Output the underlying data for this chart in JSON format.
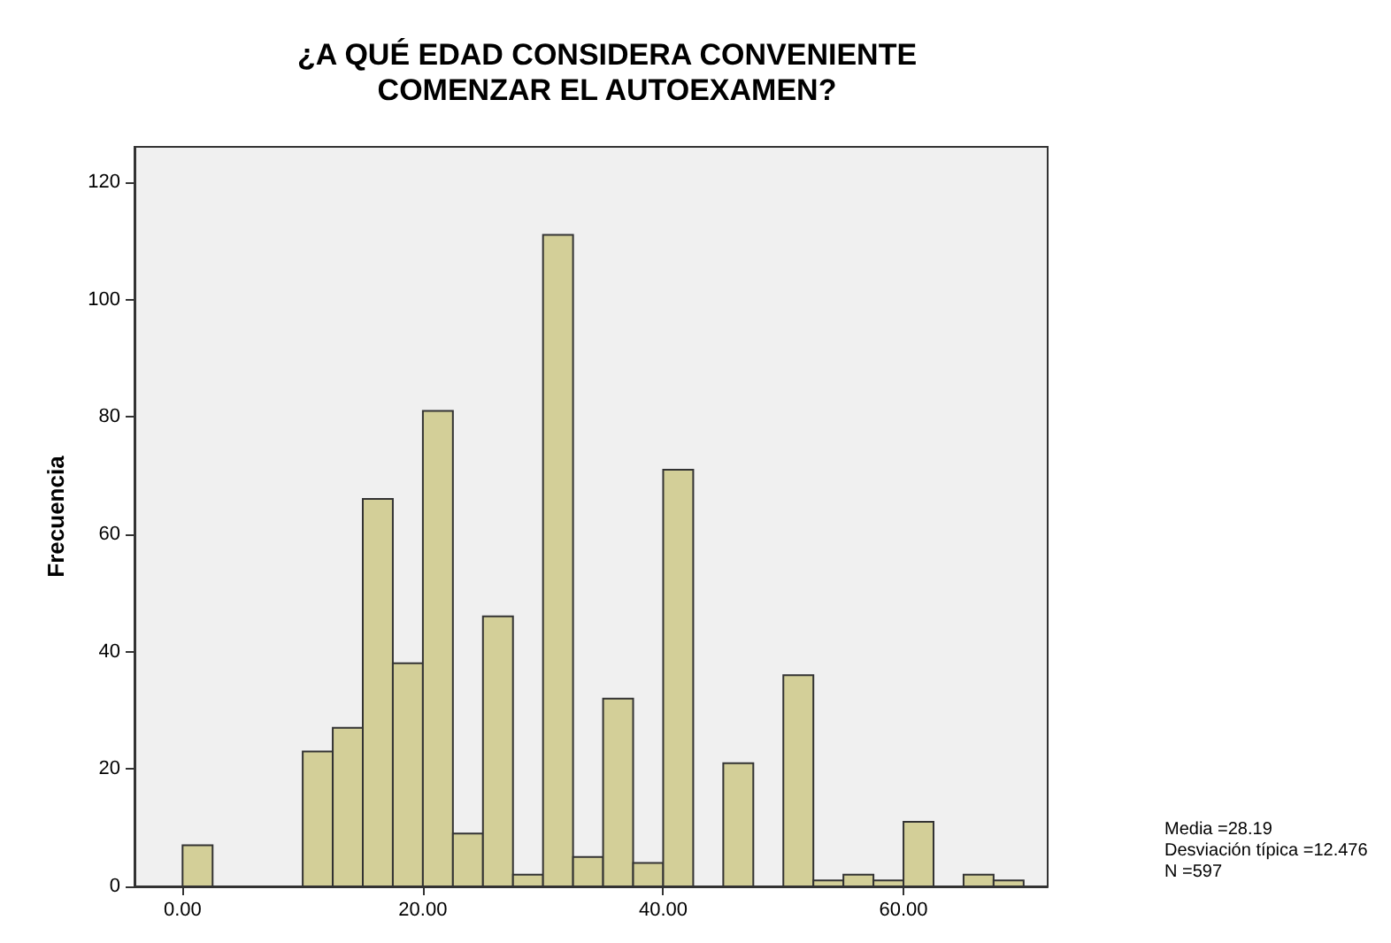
{
  "chart_data": {
    "type": "histogram",
    "title": "¿A QUÉ EDAD CONSIDERA CONVENIENTE\nCOMENZAR EL AUTOEXAMEN?",
    "ylabel": "Frecuencia",
    "bins": [
      0,
      2.5,
      5,
      7.5,
      10,
      12.5,
      15,
      17.5,
      20,
      22.5,
      25,
      27.5,
      30,
      32.5,
      35,
      37.5,
      40,
      42.5,
      45,
      47.5,
      50,
      52.5,
      55,
      57.5,
      60,
      62.5,
      65,
      67.5,
      70
    ],
    "values": [
      7,
      0,
      0,
      0,
      23,
      27,
      66,
      38,
      81,
      9,
      46,
      2,
      111,
      5,
      32,
      4,
      71,
      0,
      21,
      0,
      36,
      1,
      2,
      1,
      11,
      0,
      2,
      1
    ],
    "color": "#d3cf98",
    "xlim": [
      -4,
      72
    ],
    "xticks": [
      {
        "value": 0,
        "label": "0.00"
      },
      {
        "value": 20,
        "label": "20.00"
      },
      {
        "value": 40,
        "label": "40.00"
      },
      {
        "value": 60,
        "label": "60.00"
      }
    ],
    "ylim": [
      0,
      126
    ],
    "yticks": [
      0,
      20,
      40,
      60,
      80,
      100,
      120
    ],
    "grid": false,
    "annotations": [
      "Media =28.19",
      "Desviación típica =12.476",
      "N =597"
    ]
  }
}
